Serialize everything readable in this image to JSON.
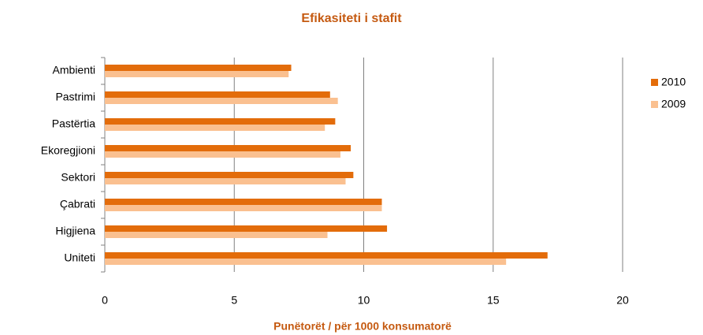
{
  "chart_data": {
    "type": "barh",
    "title": "Efikasiteti i stafit",
    "x_label": "Punëtorët / për 1000 konsumatorë",
    "categories": [
      "Ambienti",
      "Pastrimi",
      "Pastërtia",
      "Ekoregjioni",
      "Sektori",
      "Çabrati",
      "Higjiena",
      "Uniteti"
    ],
    "series": [
      {
        "name": "2010",
        "color": "#e36c0a",
        "values": [
          7.2,
          8.7,
          8.9,
          9.5,
          9.6,
          10.7,
          10.9,
          17.1
        ]
      },
      {
        "name": "2009",
        "color": "#fac090",
        "values": [
          7.1,
          9.0,
          8.5,
          9.1,
          9.3,
          10.7,
          8.6,
          15.5
        ]
      }
    ],
    "xlim": [
      0,
      20
    ],
    "xticks": [
      0,
      5,
      10,
      15,
      20
    ],
    "grid": true,
    "legend": "right"
  }
}
